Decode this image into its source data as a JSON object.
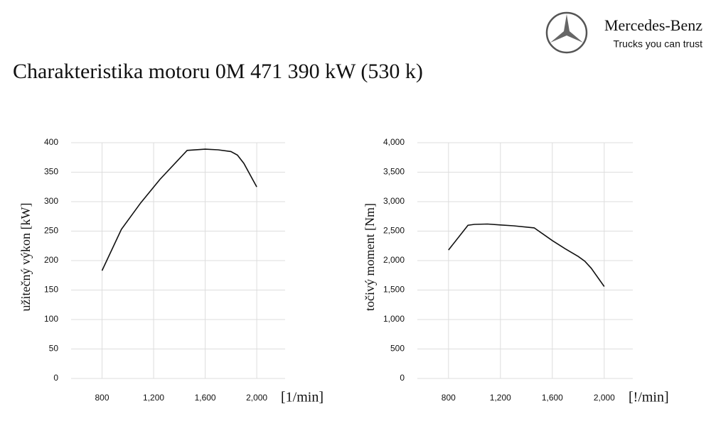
{
  "header": {
    "brand": "Mercedes-Benz",
    "tagline": "Trucks you can trust",
    "title": "Charakteristika motoru 0M 471 390 kW (530 k)"
  },
  "chart_data": [
    {
      "type": "line",
      "y_label": "užitečný výkon [kW]",
      "x_label": "[1/min]",
      "color": "#111111",
      "grid": true,
      "x": [
        800,
        950,
        1100,
        1250,
        1460,
        1600,
        1700,
        1800,
        1850,
        1900,
        2000
      ],
      "values": [
        183,
        253,
        298,
        338,
        387,
        389,
        388,
        385,
        379,
        365,
        325
      ],
      "xlim": [
        560,
        2220
      ],
      "xticks": [
        800,
        {
          "value": 1200,
          "label": "1,200"
        },
        {
          "value": 1600,
          "label": "1,600"
        },
        {
          "value": 2000,
          "label": "2,000"
        }
      ],
      "ylim": [
        0,
        400
      ],
      "yticks": [
        0,
        50,
        100,
        150,
        200,
        250,
        300,
        350,
        400
      ]
    },
    {
      "type": "line",
      "y_label": "točivý moment [Nm]",
      "x_label": "[!/min]",
      "color": "#111111",
      "grid": true,
      "x": [
        800,
        950,
        1000,
        1100,
        1200,
        1300,
        1460,
        1600,
        1700,
        1800,
        1850,
        1900,
        2000
      ],
      "values": [
        2180,
        2600,
        2615,
        2620,
        2605,
        2590,
        2555,
        2340,
        2200,
        2070,
        1990,
        1870,
        1560
      ],
      "xlim": [
        560,
        2220
      ],
      "xticks": [
        800,
        {
          "value": 1200,
          "label": "1,200"
        },
        {
          "value": 1600,
          "label": "1,600"
        },
        {
          "value": 2000,
          "label": "2,000"
        }
      ],
      "ylim": [
        0,
        4000
      ],
      "yticks": [
        0,
        500,
        {
          "value": 1000,
          "label": "1,000"
        },
        {
          "value": 1500,
          "label": "1,500"
        },
        {
          "value": 2000,
          "label": "2,000"
        },
        {
          "value": 2500,
          "label": "2,500"
        },
        {
          "value": 3000,
          "label": "3,000"
        },
        {
          "value": 3500,
          "label": "3,500"
        },
        {
          "value": 4000,
          "label": "4,000"
        }
      ]
    }
  ]
}
